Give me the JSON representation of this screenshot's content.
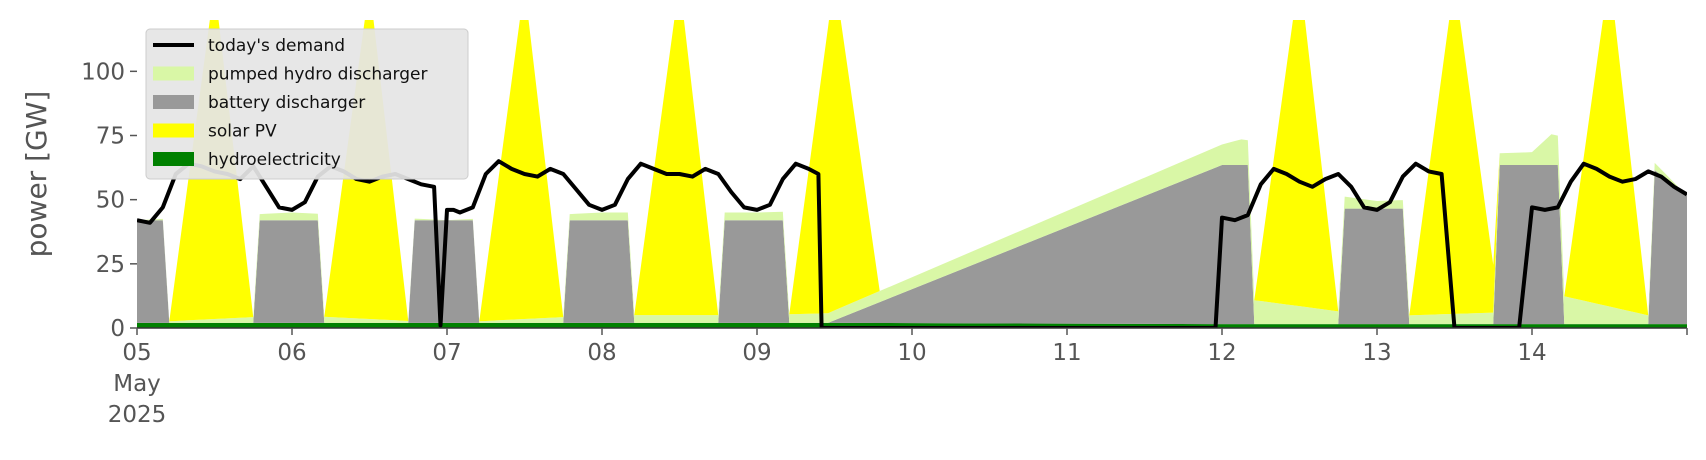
{
  "chart_data": {
    "type": "area",
    "ylabel": "power [GW]",
    "ylim": [
      0,
      120
    ],
    "yticks": [
      0,
      25,
      50,
      75,
      100
    ],
    "xlim": [
      "2025-05-05T00:00",
      "2025-05-15T00:00"
    ],
    "xticks": [
      {
        "t": "2025-05-05T00:00",
        "lines": [
          "05",
          "May",
          "2025"
        ]
      },
      {
        "t": "2025-05-06T00:00",
        "lines": [
          "06"
        ]
      },
      {
        "t": "2025-05-07T00:00",
        "lines": [
          "07"
        ]
      },
      {
        "t": "2025-05-08T00:00",
        "lines": [
          "08"
        ]
      },
      {
        "t": "2025-05-09T00:00",
        "lines": [
          "09"
        ]
      },
      {
        "t": "2025-05-10T00:00",
        "lines": [
          "10"
        ]
      },
      {
        "t": "2025-05-11T00:00",
        "lines": [
          "11"
        ]
      },
      {
        "t": "2025-05-12T00:00",
        "lines": [
          "12"
        ]
      },
      {
        "t": "2025-05-13T00:00",
        "lines": [
          "13"
        ]
      },
      {
        "t": "2025-05-14T00:00",
        "lines": [
          "14"
        ]
      }
    ],
    "legend": {
      "placement": "upper-left",
      "entries": [
        {
          "label": "today's demand",
          "color": "#000000",
          "kind": "line"
        },
        {
          "label": "pumped hydro discharger",
          "color": "#d9f7a6",
          "kind": "patch"
        },
        {
          "label": "battery discharger",
          "color": "#999999",
          "kind": "patch"
        },
        {
          "label": "solar PV",
          "color": "#ffff00",
          "kind": "patch"
        },
        {
          "label": "hydroelectricity",
          "color": "#008000",
          "kind": "patch"
        }
      ]
    },
    "colors": {
      "hydro": "#008000",
      "battery": "#999999",
      "pumped": "#d9f7a6",
      "solar": "#ffff00",
      "demand": "#000000"
    },
    "series": [
      {
        "name": "hydroelectricity",
        "x": [
          "2025-05-05T00:00",
          "2025-05-09T12:00",
          "2025-05-12T00:00",
          "2025-05-15T00:00"
        ],
        "values": [
          2,
          2,
          1.5,
          1.5
        ]
      },
      {
        "name": "battery discharger",
        "x": [
          "2025-05-05T00:00",
          "2025-05-05T04:00",
          "2025-05-05T05:00",
          "2025-05-05T18:00",
          "2025-05-05T19:00",
          "2025-05-06T00:00",
          "2025-05-06T04:00",
          "2025-05-06T05:00",
          "2025-05-06T18:00",
          "2025-05-06T19:00",
          "2025-05-06T23:00",
          "2025-05-07T00:00",
          "2025-05-07T04:00",
          "2025-05-07T05:00",
          "2025-05-07T18:00",
          "2025-05-07T19:00",
          "2025-05-08T00:00",
          "2025-05-08T04:00",
          "2025-05-08T05:00",
          "2025-05-08T18:00",
          "2025-05-08T19:00",
          "2025-05-09T00:00",
          "2025-05-09T04:00",
          "2025-05-09T05:00",
          "2025-05-09T11:00",
          "2025-05-12T00:00",
          "2025-05-12T04:00",
          "2025-05-12T05:00",
          "2025-05-12T18:00",
          "2025-05-12T19:00",
          "2025-05-13T00:00",
          "2025-05-13T04:00",
          "2025-05-13T05:00",
          "2025-05-13T18:00",
          "2025-05-13T19:00",
          "2025-05-14T00:00",
          "2025-05-14T04:00",
          "2025-05-14T05:00",
          "2025-05-14T18:00",
          "2025-05-14T19:00",
          "2025-05-15T00:00"
        ],
        "values": [
          40,
          40,
          0,
          0,
          40,
          40,
          40,
          0,
          0,
          40,
          40,
          40,
          40,
          0,
          0,
          40,
          40,
          40,
          0,
          0,
          40,
          40,
          40,
          0,
          0,
          62,
          62,
          0,
          0,
          45,
          45,
          45,
          0,
          0,
          62,
          62,
          62,
          0,
          0,
          60,
          50
        ]
      },
      {
        "name": "pumped hydro discharger",
        "x": [
          "2025-05-05T00:00",
          "2025-05-06T00:00",
          "2025-05-07T00:00",
          "2025-05-08T00:00",
          "2025-05-09T00:00",
          "2025-05-12T00:00",
          "2025-05-12T03:00",
          "2025-05-13T00:00",
          "2025-05-14T00:00",
          "2025-05-14T03:00",
          "2025-05-15T00:00"
        ],
        "values": [
          0,
          3,
          0,
          3,
          3,
          8,
          10,
          3,
          5,
          12,
          0
        ]
      },
      {
        "name": "solar PV",
        "x": [
          "2025-05-05T05:00",
          "2025-05-05T12:00",
          "2025-05-05T18:00",
          "2025-05-06T05:00",
          "2025-05-06T12:00",
          "2025-05-06T18:00",
          "2025-05-07T05:00",
          "2025-05-07T12:00",
          "2025-05-07T18:00",
          "2025-05-08T05:00",
          "2025-05-08T12:00",
          "2025-05-08T18:00",
          "2025-05-09T05:00",
          "2025-05-09T12:00",
          "2025-05-09T19:00",
          "2025-05-12T05:00",
          "2025-05-12T12:00",
          "2025-05-12T18:00",
          "2025-05-13T05:00",
          "2025-05-13T12:00",
          "2025-05-13T19:00",
          "2025-05-14T05:00",
          "2025-05-14T12:00",
          "2025-05-14T18:00"
        ],
        "values": [
          0,
          130,
          0,
          0,
          130,
          0,
          0,
          130,
          0,
          0,
          130,
          0,
          0,
          130,
          0,
          0,
          130,
          0,
          0,
          130,
          0,
          0,
          130,
          0
        ]
      },
      {
        "name": "today's demand",
        "x": [
          "2025-05-05T00:00",
          "2025-05-05T02:00",
          "2025-05-05T04:00",
          "2025-05-05T06:00",
          "2025-05-05T08:00",
          "2025-05-05T10:00",
          "2025-05-05T12:00",
          "2025-05-05T14:00",
          "2025-05-05T16:00",
          "2025-05-05T18:00",
          "2025-05-05T20:00",
          "2025-05-05T22:00",
          "2025-05-06T00:00",
          "2025-05-06T02:00",
          "2025-05-06T04:00",
          "2025-05-06T06:00",
          "2025-05-06T08:00",
          "2025-05-06T10:00",
          "2025-05-06T12:00",
          "2025-05-06T14:00",
          "2025-05-06T16:00",
          "2025-05-06T18:00",
          "2025-05-06T20:00",
          "2025-05-06T22:00",
          "2025-05-06T23:00",
          "2025-05-07T00:00",
          "2025-05-07T01:00",
          "2025-05-07T02:00",
          "2025-05-07T04:00",
          "2025-05-07T06:00",
          "2025-05-07T08:00",
          "2025-05-07T10:00",
          "2025-05-07T12:00",
          "2025-05-07T14:00",
          "2025-05-07T16:00",
          "2025-05-07T18:00",
          "2025-05-07T20:00",
          "2025-05-07T22:00",
          "2025-05-08T00:00",
          "2025-05-08T02:00",
          "2025-05-08T04:00",
          "2025-05-08T06:00",
          "2025-05-08T08:00",
          "2025-05-08T10:00",
          "2025-05-08T12:00",
          "2025-05-08T14:00",
          "2025-05-08T16:00",
          "2025-05-08T18:00",
          "2025-05-08T20:00",
          "2025-05-08T22:00",
          "2025-05-09T00:00",
          "2025-05-09T02:00",
          "2025-05-09T04:00",
          "2025-05-09T06:00",
          "2025-05-09T08:00",
          "2025-05-09T09:30",
          "2025-05-09T10:00",
          "2025-05-09T11:00",
          "2025-05-11T23:00",
          "2025-05-12T00:00",
          "2025-05-12T02:00",
          "2025-05-12T04:00",
          "2025-05-12T06:00",
          "2025-05-12T08:00",
          "2025-05-12T10:00",
          "2025-05-12T12:00",
          "2025-05-12T14:00",
          "2025-05-12T16:00",
          "2025-05-12T18:00",
          "2025-05-12T20:00",
          "2025-05-12T22:00",
          "2025-05-13T00:00",
          "2025-05-13T02:00",
          "2025-05-13T04:00",
          "2025-05-13T06:00",
          "2025-05-13T08:00",
          "2025-05-13T10:00",
          "2025-05-13T12:00",
          "2025-05-13T13:00",
          "2025-05-13T14:00",
          "2025-05-13T15:00",
          "2025-05-13T22:00",
          "2025-05-14T00:00",
          "2025-05-14T02:00",
          "2025-05-14T04:00",
          "2025-05-14T06:00",
          "2025-05-14T08:00",
          "2025-05-14T10:00",
          "2025-05-14T12:00",
          "2025-05-14T14:00",
          "2025-05-14T16:00",
          "2025-05-14T18:00",
          "2025-05-14T20:00",
          "2025-05-14T22:00",
          "2025-05-15T00:00"
        ],
        "values": [
          42,
          41,
          47,
          60,
          64,
          63,
          61,
          60,
          58,
          63,
          55,
          47,
          46,
          49,
          59,
          63,
          61,
          58,
          57,
          59,
          60,
          58,
          56,
          55,
          1,
          46,
          46,
          45,
          47,
          60,
          65,
          62,
          60,
          59,
          62,
          60,
          54,
          48,
          46,
          48,
          58,
          64,
          62,
          60,
          60,
          59,
          62,
          60,
          53,
          47,
          46,
          48,
          58,
          64,
          62,
          60,
          0,
          0,
          0,
          43,
          42,
          44,
          56,
          62,
          60,
          57,
          55,
          58,
          60,
          55,
          47,
          46,
          49,
          59,
          64,
          61,
          60,
          0,
          0,
          0,
          0,
          0,
          47,
          46,
          47,
          57,
          64,
          62,
          59,
          57,
          58,
          61,
          59,
          55,
          52
        ]
      }
    ]
  }
}
